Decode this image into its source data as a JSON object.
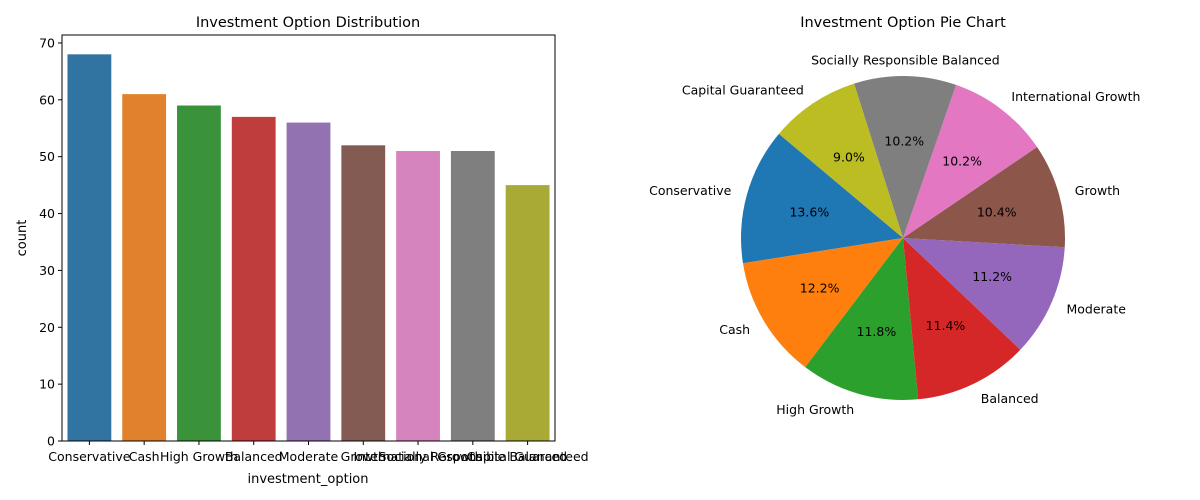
{
  "chart_data": [
    {
      "type": "bar",
      "title": "Investment Option Distribution",
      "xlabel": "investment_option",
      "ylabel": "count",
      "categories": [
        "Conservative",
        "Cash",
        "High Growth",
        "Balanced",
        "Moderate",
        "Growth",
        "International Growth",
        "Socially Responsible Balanced",
        "Capital Guaranteed"
      ],
      "values": [
        68,
        61,
        59,
        57,
        56,
        52,
        51,
        51,
        45
      ],
      "colors": [
        "#3274a1",
        "#e1812c",
        "#3a923a",
        "#c03d3e",
        "#9372b2",
        "#845b53",
        "#d684bd",
        "#7f7f7f",
        "#a9aa35"
      ],
      "ylim": [
        0,
        71.4
      ],
      "yticks": [
        0,
        10,
        20,
        30,
        40,
        50,
        60,
        70
      ],
      "grid": false,
      "legend": "none"
    },
    {
      "type": "pie",
      "title": "Investment Option Pie Chart",
      "labels": [
        "Conservative",
        "Cash",
        "High Growth",
        "Balanced",
        "Moderate",
        "Growth",
        "International Growth",
        "Socially Responsible Balanced",
        "Capital Guaranteed"
      ],
      "values": [
        68,
        61,
        59,
        57,
        56,
        52,
        51,
        51,
        45
      ],
      "percent_labels": [
        "13.6%",
        "12.2%",
        "11.8%",
        "11.4%",
        "11.2%",
        "10.4%",
        "10.2%",
        "10.2%",
        "9.0%"
      ],
      "colors": [
        "#1f77b4",
        "#ff7f0e",
        "#2ca02c",
        "#d62728",
        "#9467bd",
        "#8c564b",
        "#e377c2",
        "#7f7f7f",
        "#bcbd22"
      ],
      "start_angle_deg": 140,
      "direction": "counterclockwise",
      "legend": "none"
    }
  ]
}
